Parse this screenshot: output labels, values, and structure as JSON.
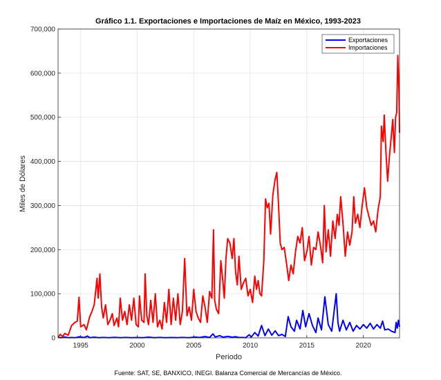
{
  "chart_data": {
    "type": "line",
    "title": "Gráfico 1.1. Exportaciones e Importaciones de Maíz en México, 1993-2023",
    "xlabel": "Periodo",
    "ylabel": "Miles de Dólares",
    "xlim": [
      1993,
      2023.2
    ],
    "ylim": [
      0,
      700000
    ],
    "x_ticks": [
      1995,
      2000,
      2005,
      2010,
      2015,
      2020
    ],
    "x_tick_labels": [
      "1995",
      "2000",
      "2005",
      "2010",
      "2015",
      "2020"
    ],
    "y_ticks": [
      0,
      100000,
      200000,
      300000,
      400000,
      500000,
      600000,
      700000
    ],
    "y_tick_labels": [
      "0",
      "100,000",
      "200,000",
      "300,000",
      "400,000",
      "500,000",
      "600,000",
      "700,000"
    ],
    "grid": true,
    "legend_position": "top-right",
    "series": [
      {
        "name": "Exportaciones",
        "color": "#0000ff",
        "points": [
          [
            1993.0,
            1000
          ],
          [
            1993.3,
            500
          ],
          [
            1993.6,
            2000
          ],
          [
            1993.9,
            500
          ],
          [
            1994.2,
            800
          ],
          [
            1994.5,
            300
          ],
          [
            1994.9,
            2500
          ],
          [
            1995.3,
            800
          ],
          [
            1995.6,
            4000
          ],
          [
            1995.8,
            500
          ],
          [
            1996.2,
            1500
          ],
          [
            1996.6,
            300
          ],
          [
            1997.0,
            1000
          ],
          [
            1997.5,
            500
          ],
          [
            1998.0,
            1200
          ],
          [
            1998.5,
            300
          ],
          [
            1999.0,
            1000
          ],
          [
            1999.5,
            500
          ],
          [
            2000.0,
            800
          ],
          [
            2000.5,
            300
          ],
          [
            2001.0,
            1500
          ],
          [
            2001.5,
            500
          ],
          [
            2002.0,
            1000
          ],
          [
            2002.5,
            300
          ],
          [
            2003.0,
            800
          ],
          [
            2003.5,
            500
          ],
          [
            2004.0,
            1000
          ],
          [
            2004.6,
            500
          ],
          [
            2005.1,
            2000
          ],
          [
            2005.5,
            800
          ],
          [
            2006.0,
            3000
          ],
          [
            2006.4,
            1000
          ],
          [
            2006.7,
            9000
          ],
          [
            2006.9,
            2000
          ],
          [
            2007.3,
            5000
          ],
          [
            2007.6,
            1500
          ],
          [
            2008.0,
            3500
          ],
          [
            2008.4,
            1500
          ],
          [
            2008.7,
            2500
          ],
          [
            2009.0,
            800
          ],
          [
            2009.3,
            1000
          ],
          [
            2009.6,
            500
          ],
          [
            2009.9,
            7000
          ],
          [
            2010.1,
            2000
          ],
          [
            2010.4,
            12000
          ],
          [
            2010.7,
            4000
          ],
          [
            2011.0,
            28000
          ],
          [
            2011.3,
            5000
          ],
          [
            2011.6,
            20000
          ],
          [
            2011.9,
            6000
          ],
          [
            2012.2,
            16000
          ],
          [
            2012.5,
            5000
          ],
          [
            2012.8,
            8000
          ],
          [
            2013.1,
            3000
          ],
          [
            2013.35,
            48000
          ],
          [
            2013.6,
            25000
          ],
          [
            2013.9,
            15000
          ],
          [
            2014.1,
            40000
          ],
          [
            2014.4,
            20000
          ],
          [
            2014.65,
            62000
          ],
          [
            2014.9,
            25000
          ],
          [
            2015.2,
            55000
          ],
          [
            2015.5,
            28000
          ],
          [
            2015.8,
            12000
          ],
          [
            2016.0,
            45000
          ],
          [
            2016.3,
            18000
          ],
          [
            2016.6,
            93000
          ],
          [
            2016.9,
            30000
          ],
          [
            2017.2,
            15000
          ],
          [
            2017.6,
            100000
          ],
          [
            2017.75,
            35000
          ],
          [
            2017.9,
            15000
          ],
          [
            2018.2,
            40000
          ],
          [
            2018.5,
            18000
          ],
          [
            2018.8,
            35000
          ],
          [
            2019.1,
            15000
          ],
          [
            2019.4,
            28000
          ],
          [
            2019.7,
            20000
          ],
          [
            2020.0,
            30000
          ],
          [
            2020.3,
            22000
          ],
          [
            2020.6,
            33000
          ],
          [
            2020.9,
            20000
          ],
          [
            2021.2,
            30000
          ],
          [
            2021.5,
            22000
          ],
          [
            2021.7,
            38000
          ],
          [
            2021.9,
            18000
          ],
          [
            2022.2,
            20000
          ],
          [
            2022.5,
            15000
          ],
          [
            2022.8,
            12000
          ],
          [
            2022.9,
            35000
          ],
          [
            2023.0,
            22000
          ],
          [
            2023.1,
            40000
          ],
          [
            2023.2,
            25000
          ]
        ]
      },
      {
        "name": "Importaciones",
        "color": "#ff0000",
        "points": [
          [
            1993.0,
            2000
          ],
          [
            1993.2,
            8000
          ],
          [
            1993.4,
            3000
          ],
          [
            1993.6,
            10000
          ],
          [
            1993.9,
            6000
          ],
          [
            1994.2,
            28000
          ],
          [
            1994.5,
            35000
          ],
          [
            1994.7,
            38000
          ],
          [
            1994.85,
            92000
          ],
          [
            1995.0,
            25000
          ],
          [
            1995.3,
            30000
          ],
          [
            1995.5,
            18000
          ],
          [
            1995.8,
            48000
          ],
          [
            1996.0,
            60000
          ],
          [
            1996.2,
            75000
          ],
          [
            1996.45,
            135000
          ],
          [
            1996.55,
            90000
          ],
          [
            1996.7,
            145000
          ],
          [
            1996.85,
            70000
          ],
          [
            1997.0,
            45000
          ],
          [
            1997.2,
            75000
          ],
          [
            1997.4,
            30000
          ],
          [
            1997.6,
            40000
          ],
          [
            1997.8,
            55000
          ],
          [
            1997.95,
            28000
          ],
          [
            1998.2,
            45000
          ],
          [
            1998.35,
            25000
          ],
          [
            1998.5,
            90000
          ],
          [
            1998.7,
            40000
          ],
          [
            1998.9,
            60000
          ],
          [
            1999.1,
            30000
          ],
          [
            1999.3,
            75000
          ],
          [
            1999.5,
            40000
          ],
          [
            1999.7,
            90000
          ],
          [
            1999.9,
            30000
          ],
          [
            2000.1,
            25000
          ],
          [
            2000.2,
            95000
          ],
          [
            2000.4,
            40000
          ],
          [
            2000.6,
            35000
          ],
          [
            2000.7,
            145000
          ],
          [
            2000.85,
            50000
          ],
          [
            2001.0,
            30000
          ],
          [
            2001.2,
            85000
          ],
          [
            2001.4,
            35000
          ],
          [
            2001.6,
            100000
          ],
          [
            2001.8,
            25000
          ],
          [
            2002.0,
            40000
          ],
          [
            2002.2,
            20000
          ],
          [
            2002.4,
            80000
          ],
          [
            2002.6,
            35000
          ],
          [
            2002.8,
            110000
          ],
          [
            2003.0,
            30000
          ],
          [
            2003.2,
            90000
          ],
          [
            2003.4,
            40000
          ],
          [
            2003.6,
            100000
          ],
          [
            2003.8,
            30000
          ],
          [
            2004.0,
            60000
          ],
          [
            2004.2,
            180000
          ],
          [
            2004.4,
            50000
          ],
          [
            2004.6,
            70000
          ],
          [
            2004.8,
            40000
          ],
          [
            2005.0,
            110000
          ],
          [
            2005.2,
            60000
          ],
          [
            2005.4,
            45000
          ],
          [
            2005.6,
            35000
          ],
          [
            2005.8,
            95000
          ],
          [
            2006.0,
            70000
          ],
          [
            2006.2,
            35000
          ],
          [
            2006.4,
            105000
          ],
          [
            2006.6,
            90000
          ],
          [
            2006.75,
            245000
          ],
          [
            2006.85,
            85000
          ],
          [
            2007.0,
            65000
          ],
          [
            2007.2,
            55000
          ],
          [
            2007.4,
            175000
          ],
          [
            2007.55,
            135000
          ],
          [
            2007.7,
            90000
          ],
          [
            2007.85,
            180000
          ],
          [
            2008.0,
            225000
          ],
          [
            2008.2,
            215000
          ],
          [
            2008.4,
            180000
          ],
          [
            2008.55,
            225000
          ],
          [
            2008.7,
            150000
          ],
          [
            2008.85,
            120000
          ],
          [
            2009.0,
            185000
          ],
          [
            2009.2,
            110000
          ],
          [
            2009.4,
            125000
          ],
          [
            2009.6,
            135000
          ],
          [
            2009.8,
            95000
          ],
          [
            2010.0,
            110000
          ],
          [
            2010.2,
            80000
          ],
          [
            2010.4,
            140000
          ],
          [
            2010.55,
            110000
          ],
          [
            2010.7,
            130000
          ],
          [
            2010.85,
            100000
          ],
          [
            2011.0,
            95000
          ],
          [
            2011.2,
            175000
          ],
          [
            2011.35,
            315000
          ],
          [
            2011.5,
            295000
          ],
          [
            2011.65,
            305000
          ],
          [
            2011.8,
            235000
          ],
          [
            2012.0,
            325000
          ],
          [
            2012.2,
            360000
          ],
          [
            2012.35,
            375000
          ],
          [
            2012.5,
            300000
          ],
          [
            2012.65,
            215000
          ],
          [
            2012.8,
            200000
          ],
          [
            2013.0,
            205000
          ],
          [
            2013.2,
            170000
          ],
          [
            2013.4,
            130000
          ],
          [
            2013.6,
            165000
          ],
          [
            2013.8,
            145000
          ],
          [
            2014.0,
            195000
          ],
          [
            2014.2,
            230000
          ],
          [
            2014.4,
            215000
          ],
          [
            2014.6,
            250000
          ],
          [
            2014.8,
            175000
          ],
          [
            2015.0,
            195000
          ],
          [
            2015.2,
            230000
          ],
          [
            2015.4,
            165000
          ],
          [
            2015.6,
            205000
          ],
          [
            2015.8,
            200000
          ],
          [
            2016.0,
            240000
          ],
          [
            2016.2,
            210000
          ],
          [
            2016.4,
            170000
          ],
          [
            2016.55,
            300000
          ],
          [
            2016.7,
            195000
          ],
          [
            2016.9,
            245000
          ],
          [
            2017.1,
            185000
          ],
          [
            2017.3,
            265000
          ],
          [
            2017.5,
            225000
          ],
          [
            2017.7,
            280000
          ],
          [
            2017.85,
            255000
          ],
          [
            2018.0,
            320000
          ],
          [
            2018.2,
            260000
          ],
          [
            2018.4,
            185000
          ],
          [
            2018.6,
            240000
          ],
          [
            2018.8,
            210000
          ],
          [
            2019.0,
            240000
          ],
          [
            2019.15,
            320000
          ],
          [
            2019.3,
            260000
          ],
          [
            2019.5,
            280000
          ],
          [
            2019.7,
            250000
          ],
          [
            2019.9,
            300000
          ],
          [
            2020.1,
            340000
          ],
          [
            2020.3,
            295000
          ],
          [
            2020.5,
            275000
          ],
          [
            2020.7,
            255000
          ],
          [
            2020.9,
            265000
          ],
          [
            2021.1,
            240000
          ],
          [
            2021.3,
            290000
          ],
          [
            2021.5,
            320000
          ],
          [
            2021.6,
            480000
          ],
          [
            2021.75,
            445000
          ],
          [
            2021.85,
            505000
          ],
          [
            2022.0,
            420000
          ],
          [
            2022.15,
            355000
          ],
          [
            2022.3,
            410000
          ],
          [
            2022.45,
            450000
          ],
          [
            2022.6,
            495000
          ],
          [
            2022.75,
            420000
          ],
          [
            2022.85,
            500000
          ],
          [
            2022.95,
            510000
          ],
          [
            2023.05,
            640000
          ],
          [
            2023.15,
            560000
          ],
          [
            2023.2,
            465000
          ]
        ]
      }
    ]
  },
  "footer": {
    "source": "Fuente: SAT, SE, BANXICO, INEGI. Balanza Comercial de Mercancías de México."
  }
}
